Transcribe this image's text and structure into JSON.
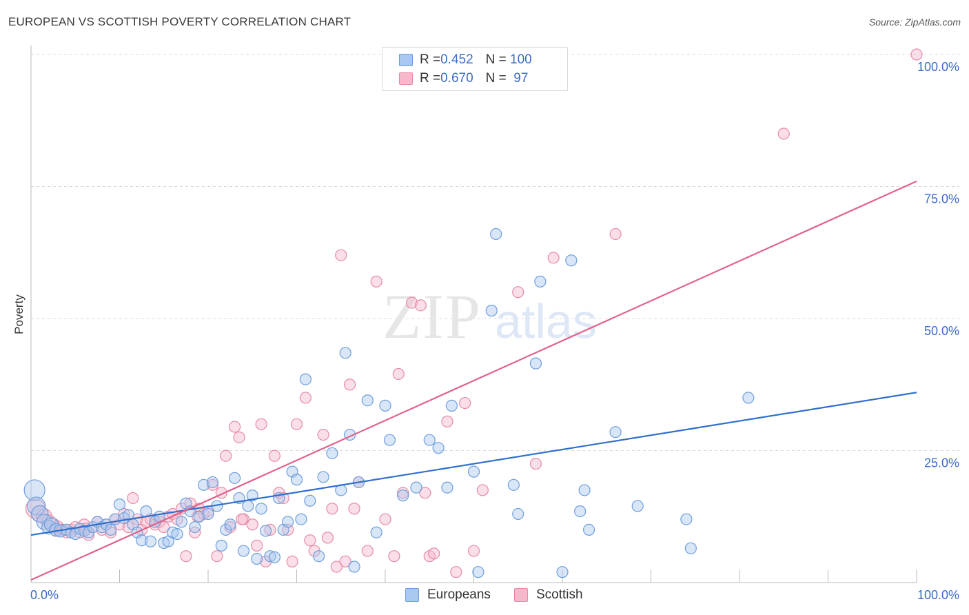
{
  "title": "EUROPEAN VS SCOTTISH POVERTY CORRELATION CHART",
  "source": "Source: ZipAtlas.com",
  "watermark": {
    "zip": "ZIP",
    "atlas": "atlas"
  },
  "legend": {
    "rows": [
      {
        "r_label": "R = ",
        "r_value": "0.452",
        "n_label": "N = ",
        "n_value": "100"
      },
      {
        "r_label": "R = ",
        "r_value": "0.670",
        "n_label": "N = ",
        "n_value": " 97"
      }
    ],
    "bottom": [
      "Europeans",
      "Scottish"
    ]
  },
  "colors": {
    "blue_fill": "#a9c8f0",
    "blue_stroke": "#6d9edb",
    "blue_line": "#2f6fcc",
    "pink_fill": "#f6b8cb",
    "pink_stroke": "#e68aa6",
    "pink_line": "#e0628c",
    "tick_label": "#3b6cc5",
    "grid": "#d8d8d8"
  },
  "chart_data": {
    "type": "scatter",
    "title": "EUROPEAN VS SCOTTISH POVERTY CORRELATION CHART",
    "xlabel": "",
    "ylabel": "Poverty",
    "xlim": [
      0,
      100
    ],
    "ylim": [
      0,
      100
    ],
    "x_tick_labels": [
      "0.0%",
      "100.0%"
    ],
    "y_ticks": [
      25,
      50,
      75,
      100
    ],
    "y_tick_labels": [
      "25.0%",
      "50.0%",
      "75.0%",
      "100.0%"
    ],
    "series": [
      {
        "name": "Europeans",
        "r": 0.452,
        "n": 100,
        "trend": {
          "x": [
            0,
            100
          ],
          "y": [
            9.0,
            36.0
          ]
        },
        "points": [
          [
            0.4,
            17.5,
            14
          ],
          [
            0.6,
            14.5,
            12
          ],
          [
            1,
            13,
            11
          ],
          [
            1.5,
            11.5,
            10
          ],
          [
            2,
            10.5,
            9
          ],
          [
            2.3,
            11,
            9
          ],
          [
            2.8,
            10,
            8
          ],
          [
            3.3,
            9.8,
            8
          ],
          [
            4,
            10,
            7
          ],
          [
            4.5,
            9.5,
            7
          ],
          [
            5,
            9.2,
            7
          ],
          [
            5.5,
            10.2,
            7
          ],
          [
            6,
            9.8,
            7
          ],
          [
            6.5,
            9.5,
            7
          ],
          [
            7,
            10.5,
            7
          ],
          [
            7.5,
            11.5,
            7
          ],
          [
            8,
            10.5,
            7
          ],
          [
            8.5,
            11,
            7
          ],
          [
            9,
            10,
            7
          ],
          [
            9.5,
            12,
            7
          ],
          [
            10,
            14.8,
            7
          ],
          [
            10.5,
            12.2,
            7
          ],
          [
            11,
            12.8,
            7
          ],
          [
            11.5,
            11,
            7
          ],
          [
            12,
            9.5,
            7
          ],
          [
            12.5,
            8,
            7
          ],
          [
            13,
            13.5,
            7
          ],
          [
            13.5,
            7.8,
            7
          ],
          [
            14,
            11.5,
            7
          ],
          [
            14.5,
            12.5,
            7
          ],
          [
            15,
            7.5,
            7
          ],
          [
            15.5,
            7.8,
            7
          ],
          [
            16,
            9.5,
            7
          ],
          [
            16.5,
            9.2,
            7
          ],
          [
            17,
            11.5,
            7
          ],
          [
            17.5,
            15,
            7
          ],
          [
            18,
            13.5,
            7
          ],
          [
            18.5,
            10.5,
            7
          ],
          [
            19,
            12.5,
            7
          ],
          [
            19.5,
            18.5,
            7
          ],
          [
            20,
            13,
            7
          ],
          [
            20.5,
            19,
            7
          ],
          [
            21,
            14.5,
            7
          ],
          [
            21.5,
            7,
            7
          ],
          [
            22,
            10,
            7
          ],
          [
            22.5,
            11,
            7
          ],
          [
            23,
            19.8,
            7
          ],
          [
            23.5,
            16,
            7
          ],
          [
            24,
            6,
            7
          ],
          [
            24.5,
            14.5,
            7
          ],
          [
            25,
            16.5,
            7
          ],
          [
            25.5,
            4.5,
            7
          ],
          [
            26,
            14,
            7
          ],
          [
            26.5,
            9.8,
            7
          ],
          [
            27,
            5,
            7
          ],
          [
            27.5,
            4.8,
            7
          ],
          [
            28,
            16,
            7
          ],
          [
            28.5,
            10,
            7
          ],
          [
            29,
            11.5,
            7
          ],
          [
            29.5,
            21,
            7
          ],
          [
            30,
            19.5,
            7
          ],
          [
            30.5,
            12,
            7
          ],
          [
            31,
            38.5,
            7
          ],
          [
            31.5,
            15.5,
            7
          ],
          [
            32.5,
            5,
            7
          ],
          [
            33,
            20,
            7
          ],
          [
            34,
            24.5,
            7
          ],
          [
            35,
            17.5,
            7
          ],
          [
            35.5,
            43.5,
            7
          ],
          [
            36,
            28,
            7
          ],
          [
            36.5,
            3,
            7
          ],
          [
            37,
            19,
            7
          ],
          [
            38,
            34.5,
            7
          ],
          [
            39,
            9.5,
            7
          ],
          [
            40,
            33.5,
            7
          ],
          [
            40.5,
            27,
            7
          ],
          [
            42,
            16.5,
            7
          ],
          [
            43.5,
            18,
            7
          ],
          [
            45,
            27,
            7
          ],
          [
            46,
            25.5,
            7
          ],
          [
            47,
            18,
            7
          ],
          [
            47.5,
            33.5,
            7
          ],
          [
            50,
            21,
            7
          ],
          [
            50.5,
            2,
            7
          ],
          [
            52,
            51.5,
            7
          ],
          [
            52.5,
            66,
            7
          ],
          [
            54.5,
            18.5,
            7
          ],
          [
            55,
            13,
            7
          ],
          [
            57,
            41.5,
            7
          ],
          [
            57.5,
            57,
            7
          ],
          [
            60,
            2,
            7
          ],
          [
            61,
            61,
            7
          ],
          [
            62,
            13.5,
            7
          ],
          [
            62.5,
            17.5,
            7
          ],
          [
            63,
            10,
            7
          ],
          [
            66,
            28.5,
            7
          ],
          [
            68.5,
            14.5,
            7
          ],
          [
            74,
            12,
            7
          ],
          [
            74.5,
            6.5,
            7
          ],
          [
            81,
            35,
            7
          ]
        ]
      },
      {
        "name": "Scottish",
        "r": 0.67,
        "n": 97,
        "trend": {
          "x": [
            0,
            100
          ],
          "y": [
            0.5,
            76.0
          ]
        },
        "points": [
          [
            0.5,
            14,
            13
          ],
          [
            1,
            13,
            11
          ],
          [
            1.5,
            12.5,
            10
          ],
          [
            2,
            11.5,
            9
          ],
          [
            2.5,
            11,
            8
          ],
          [
            3,
            10.5,
            8
          ],
          [
            3.5,
            10,
            7
          ],
          [
            4,
            9.5,
            7
          ],
          [
            4.5,
            10,
            7
          ],
          [
            5,
            10.5,
            7
          ],
          [
            5.5,
            9.5,
            7
          ],
          [
            6,
            11,
            7
          ],
          [
            6.5,
            9,
            7
          ],
          [
            7,
            10.5,
            7
          ],
          [
            7.5,
            11.5,
            7
          ],
          [
            8,
            10,
            7
          ],
          [
            8.5,
            11,
            7
          ],
          [
            9,
            9.5,
            7
          ],
          [
            9.5,
            12,
            7
          ],
          [
            10,
            11,
            7
          ],
          [
            10.5,
            13,
            7
          ],
          [
            11,
            10.5,
            7
          ],
          [
            11.5,
            16,
            7
          ],
          [
            12,
            12,
            7
          ],
          [
            12.5,
            10,
            7
          ],
          [
            13,
            11.5,
            7
          ],
          [
            13.5,
            12,
            7
          ],
          [
            14,
            11,
            7
          ],
          [
            14.5,
            11.5,
            7
          ],
          [
            15,
            10.5,
            7
          ],
          [
            15.5,
            12.5,
            7
          ],
          [
            16,
            13,
            7
          ],
          [
            16.5,
            12,
            7
          ],
          [
            17,
            14,
            7
          ],
          [
            17.5,
            5,
            7
          ],
          [
            18,
            15,
            7
          ],
          [
            18.5,
            9.5,
            7
          ],
          [
            19,
            14,
            7
          ],
          [
            19.5,
            13,
            7
          ],
          [
            20,
            13.5,
            7
          ],
          [
            20.5,
            18.5,
            7
          ],
          [
            21,
            5,
            7
          ],
          [
            21.5,
            17,
            7
          ],
          [
            22,
            24,
            7
          ],
          [
            22.5,
            10.5,
            7
          ],
          [
            23,
            29.5,
            7
          ],
          [
            23.5,
            27.5,
            7
          ],
          [
            24,
            12,
            7
          ],
          [
            25,
            11,
            7
          ],
          [
            25.5,
            7,
            7
          ],
          [
            26,
            30,
            7
          ],
          [
            26.5,
            4,
            7
          ],
          [
            27,
            10,
            7
          ],
          [
            27.5,
            24,
            7
          ],
          [
            28,
            17,
            7
          ],
          [
            28.5,
            16,
            7
          ],
          [
            29,
            10,
            7
          ],
          [
            29.5,
            4,
            7
          ],
          [
            30,
            30,
            7
          ],
          [
            31,
            35,
            7
          ],
          [
            31.5,
            8,
            7
          ],
          [
            32,
            6,
            7
          ],
          [
            33,
            28,
            7
          ],
          [
            33.5,
            8.5,
            7
          ],
          [
            34,
            14,
            7
          ],
          [
            34.5,
            3,
            7
          ],
          [
            35,
            62,
            7
          ],
          [
            35.5,
            4,
            7
          ],
          [
            36,
            37.5,
            7
          ],
          [
            36.5,
            14,
            7
          ],
          [
            37,
            19,
            7
          ],
          [
            38,
            6,
            7
          ],
          [
            39,
            57,
            7
          ],
          [
            40,
            12,
            7
          ],
          [
            41,
            5,
            7
          ],
          [
            41.5,
            39.5,
            7
          ],
          [
            42,
            17,
            7
          ],
          [
            43,
            53,
            7
          ],
          [
            44,
            52.5,
            7
          ],
          [
            45,
            5,
            7
          ],
          [
            45.5,
            5.5,
            7
          ],
          [
            47,
            30.5,
            7
          ],
          [
            48,
            2,
            7
          ],
          [
            49,
            34,
            7
          ],
          [
            50,
            6,
            7
          ],
          [
            51,
            17.5,
            7
          ],
          [
            55,
            55,
            7
          ],
          [
            57,
            22.5,
            7
          ],
          [
            59,
            61.5,
            7
          ],
          [
            66,
            66,
            7
          ],
          [
            85,
            85,
            7
          ],
          [
            100,
            100,
            7
          ],
          [
            2.8,
            9.8,
            7
          ],
          [
            6.2,
            10.2,
            7
          ],
          [
            18.8,
            12.5,
            7
          ],
          [
            23.8,
            12,
            7
          ],
          [
            44.5,
            17,
            7
          ]
        ]
      }
    ]
  }
}
